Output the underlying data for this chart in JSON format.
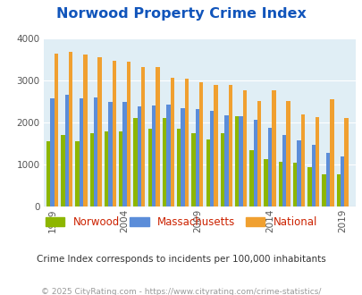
{
  "title": "Norwood Property Crime Index",
  "years": [
    1999,
    2000,
    2001,
    2002,
    2003,
    2004,
    2005,
    2006,
    2007,
    2008,
    2009,
    2010,
    2011,
    2012,
    2013,
    2014,
    2015,
    2016,
    2017,
    2018,
    2019
  ],
  "norwood": [
    1550,
    1700,
    1550,
    1750,
    1780,
    1780,
    2100,
    1860,
    2100,
    1860,
    1750,
    1600,
    1750,
    2150,
    1340,
    1130,
    1060,
    1050,
    940,
    760,
    770
  ],
  "massachusetts": [
    2570,
    2650,
    2570,
    2590,
    2480,
    2490,
    2390,
    2410,
    2430,
    2330,
    2310,
    2280,
    2160,
    2140,
    2060,
    1870,
    1700,
    1570,
    1470,
    1270,
    1200
  ],
  "national": [
    3630,
    3670,
    3620,
    3560,
    3460,
    3440,
    3320,
    3320,
    3070,
    3040,
    2960,
    2900,
    2890,
    2760,
    2500,
    2760,
    2500,
    2200,
    2120,
    2550,
    2100
  ],
  "norwood_color": "#8db600",
  "massachusetts_color": "#5b8dd9",
  "national_color": "#f0a030",
  "plot_bg": "#e0eef5",
  "title_color": "#1155bb",
  "subtitle": "Crime Index corresponds to incidents per 100,000 inhabitants",
  "footer": "© 2025 CityRating.com - https://www.cityrating.com/crime-statistics/",
  "ylim": [
    0,
    4000
  ],
  "yticks": [
    0,
    1000,
    2000,
    3000,
    4000
  ],
  "xtick_years": [
    1999,
    2004,
    2009,
    2014,
    2019
  ],
  "bar_width": 0.27,
  "legend_labels": [
    "Norwood",
    "Massachusetts",
    "National"
  ],
  "legend_label_color": "#cc2200",
  "subtitle_color": "#333333",
  "footer_color": "#999999",
  "grid_color": "#ffffff"
}
